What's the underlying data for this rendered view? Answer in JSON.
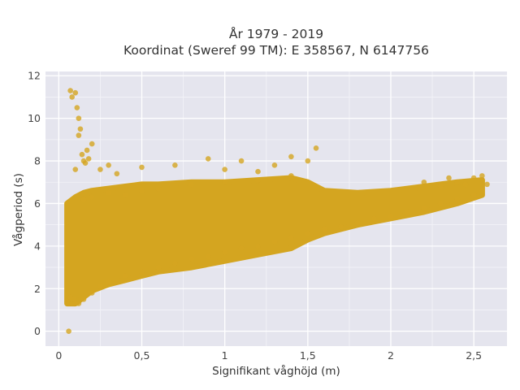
{
  "chart_data": {
    "type": "scatter",
    "title_line1": "År 1979 - 2019",
    "title_line2": "Koordinat (Sweref 99 TM): E 358567, N 6147756",
    "xlabel": "Signifikant våghöjd (m)",
    "ylabel": "Vågperiod (s)",
    "xlim": [
      -0.08,
      2.7
    ],
    "ylim": [
      -0.7,
      12.2
    ],
    "x_ticks": [
      0,
      0.5,
      1,
      1.5,
      2,
      2.5
    ],
    "x_tick_labels": [
      "0",
      "0,5",
      "1",
      "1,5",
      "2",
      "2,5"
    ],
    "y_ticks": [
      0,
      2,
      4,
      6,
      8,
      10,
      12
    ],
    "y_tick_labels": [
      "0",
      "2",
      "4",
      "6",
      "8",
      "10",
      "12"
    ],
    "grid": true,
    "legend": "none",
    "marker_color": "#d4a520",
    "plot_background": "#e5e5ee",
    "series": [
      {
        "x": [
          0.06,
          0.05,
          0.07,
          0.08,
          0.09,
          0.1,
          0.12,
          0.15,
          0.2,
          0.25,
          0.3,
          0.4,
          0.5,
          0.6,
          0.7,
          0.8,
          0.9,
          1.0,
          1.1,
          1.2,
          1.3,
          1.4,
          1.5,
          1.6,
          1.7,
          1.8,
          1.9,
          2.0,
          2.1,
          2.2,
          2.3,
          2.4,
          2.5,
          2.55,
          2.58,
          0.07,
          0.08,
          0.1,
          0.11,
          0.12,
          0.13,
          0.15,
          0.17,
          0.2,
          0.12,
          0.14,
          0.1,
          0.16,
          0.18,
          0.25,
          0.3,
          0.35,
          0.5,
          0.7,
          0.9,
          1.0,
          1.1,
          1.2,
          1.3,
          1.4,
          1.5,
          1.55,
          2.2,
          2.3,
          2.35,
          2.4,
          2.45,
          2.5,
          2.55,
          0.15,
          0.2,
          0.3,
          0.4,
          0.5,
          0.6,
          0.8,
          1.0,
          1.2,
          1.4
        ],
        "y": [
          0.0,
          1.4,
          1.6,
          1.3,
          1.5,
          1.3,
          1.3,
          1.5,
          1.8,
          2.1,
          2.3,
          2.6,
          2.8,
          3.0,
          3.2,
          3.4,
          3.5,
          3.7,
          3.9,
          4.0,
          4.2,
          4.4,
          4.6,
          4.8,
          4.9,
          5.1,
          5.3,
          5.4,
          5.6,
          5.8,
          6.0,
          6.2,
          6.4,
          6.6,
          6.9,
          11.3,
          11.0,
          11.2,
          10.5,
          10.0,
          9.5,
          8.0,
          8.5,
          8.8,
          9.2,
          8.3,
          7.6,
          7.9,
          8.1,
          7.6,
          7.8,
          7.4,
          7.7,
          7.8,
          8.1,
          7.6,
          8.0,
          7.5,
          7.8,
          8.2,
          8.0,
          8.6,
          7.0,
          6.8,
          7.2,
          7.0,
          6.9,
          7.2,
          7.3,
          6.2,
          6.3,
          6.5,
          6.4,
          6.6,
          6.7,
          6.9,
          7.0,
          7.1,
          7.3
        ]
      }
    ],
    "cloud_envelope": {
      "x": [
        0.05,
        0.1,
        0.15,
        0.2,
        0.3,
        0.4,
        0.5,
        0.6,
        0.8,
        1.0,
        1.2,
        1.4,
        1.5,
        1.6,
        1.8,
        2.0,
        2.2,
        2.4,
        2.55
      ],
      "upper": [
        6.0,
        6.3,
        6.5,
        6.6,
        6.7,
        6.8,
        6.9,
        6.9,
        7.0,
        7.0,
        7.1,
        7.2,
        7.0,
        6.6,
        6.5,
        6.6,
        6.8,
        7.0,
        7.1
      ],
      "lower": [
        1.3,
        1.3,
        1.6,
        1.9,
        2.2,
        2.4,
        2.6,
        2.8,
        3.0,
        3.3,
        3.6,
        3.9,
        4.3,
        4.6,
        5.0,
        5.3,
        5.6,
        6.0,
        6.4
      ]
    }
  }
}
